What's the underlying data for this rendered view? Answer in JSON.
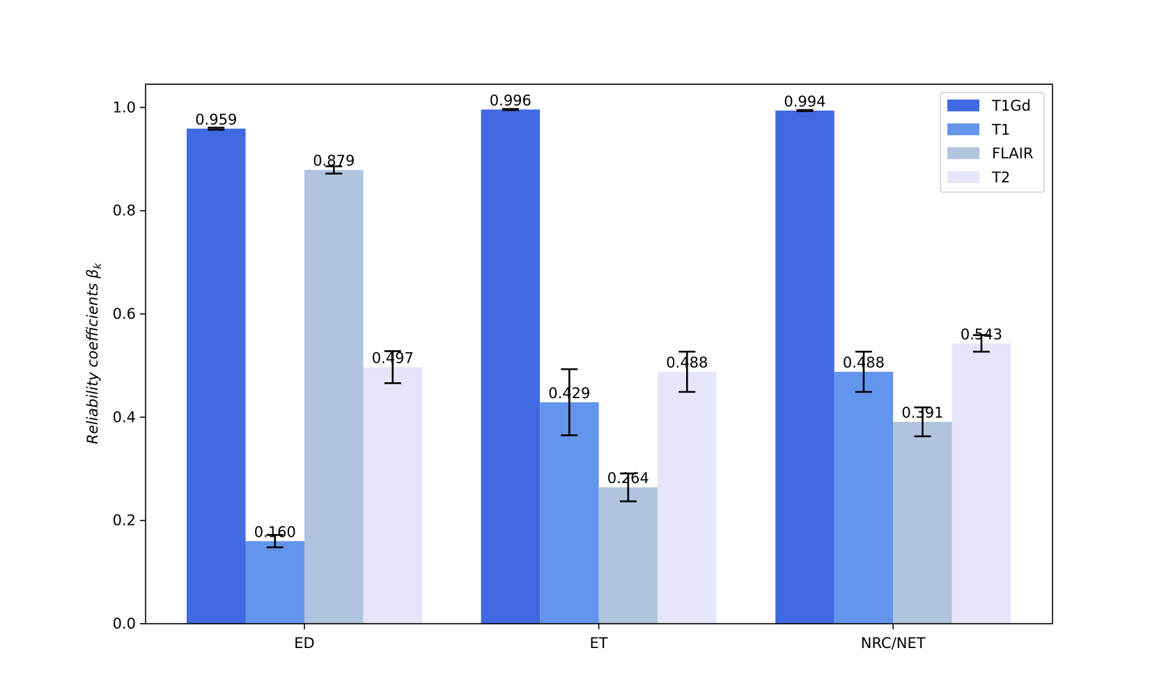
{
  "chart_data": {
    "type": "bar",
    "categories": [
      "ED",
      "ET",
      "NRC/NET"
    ],
    "series": [
      {
        "name": "T1Gd",
        "color": "#4169E1",
        "values": [
          0.959,
          0.996,
          0.994
        ],
        "errors": [
          0.002,
          0.001,
          0.001
        ]
      },
      {
        "name": "T1",
        "color": "#6495ED",
        "values": [
          0.16,
          0.429,
          0.488
        ],
        "errors": [
          0.012,
          0.064,
          0.039
        ]
      },
      {
        "name": "FLAIR",
        "color": "#B0C4DE",
        "values": [
          0.879,
          0.264,
          0.391
        ],
        "errors": [
          0.007,
          0.027,
          0.028
        ]
      },
      {
        "name": "T2",
        "color": "#E6E6FA",
        "values": [
          0.497,
          0.488,
          0.543
        ],
        "errors": [
          0.031,
          0.039,
          0.016
        ]
      }
    ],
    "value_labels": [
      [
        "0.959",
        "0.996",
        "0.994"
      ],
      [
        "0.160",
        "0.429",
        "0.488"
      ],
      [
        "0.879",
        "0.264",
        "0.391"
      ],
      [
        "0.497",
        "0.488",
        "0.543"
      ]
    ],
    "title": "",
    "xlabel": "",
    "ylabel": "Reliability coefficients β",
    "ylabel_subscript": "k",
    "ylim": [
      0,
      1.045
    ],
    "yticks": [
      0.0,
      0.2,
      0.4,
      0.6,
      0.8,
      1.0
    ],
    "ytick_labels": [
      "0.0",
      "0.2",
      "0.4",
      "0.6",
      "0.8",
      "1.0"
    ],
    "grid": false,
    "legend_position": "top-right"
  }
}
